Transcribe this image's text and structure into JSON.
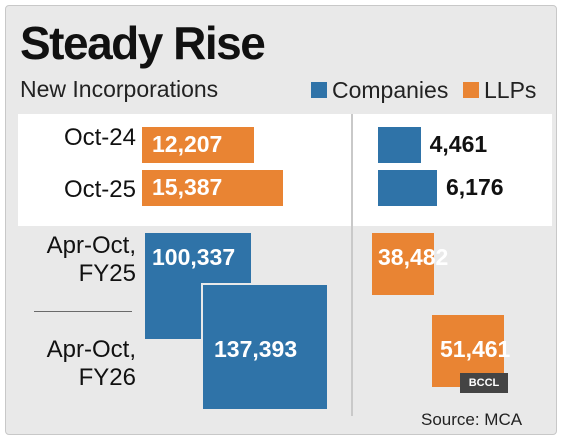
{
  "chart_data": {
    "type": "bar",
    "title": "Steady Rise",
    "subtitle": "New Incorporations",
    "series_legend": [
      {
        "name": "Companies",
        "color": "#2f73a8"
      },
      {
        "name": "LLPs",
        "color": "#e98433"
      }
    ],
    "monthly": {
      "categories": [
        "Oct-24",
        "Oct-25"
      ],
      "llps": [
        12207,
        15387
      ],
      "llps_labels": [
        "12,207",
        "15,387"
      ],
      "companies": [
        4461,
        6176
      ],
      "companies_labels": [
        "4,461",
        "6,176"
      ]
    },
    "ytd": {
      "categories": [
        [
          "Apr-Oct,",
          "FY25"
        ],
        [
          "Apr-Oct,",
          "FY26"
        ]
      ],
      "companies": [
        100337,
        137393
      ],
      "companies_labels": [
        "100,337",
        "137,393"
      ],
      "llps": [
        38482,
        51461
      ],
      "llps_labels": [
        "38,482",
        "51,461"
      ]
    },
    "source": "Source: MCA",
    "badge": "BCCL"
  }
}
